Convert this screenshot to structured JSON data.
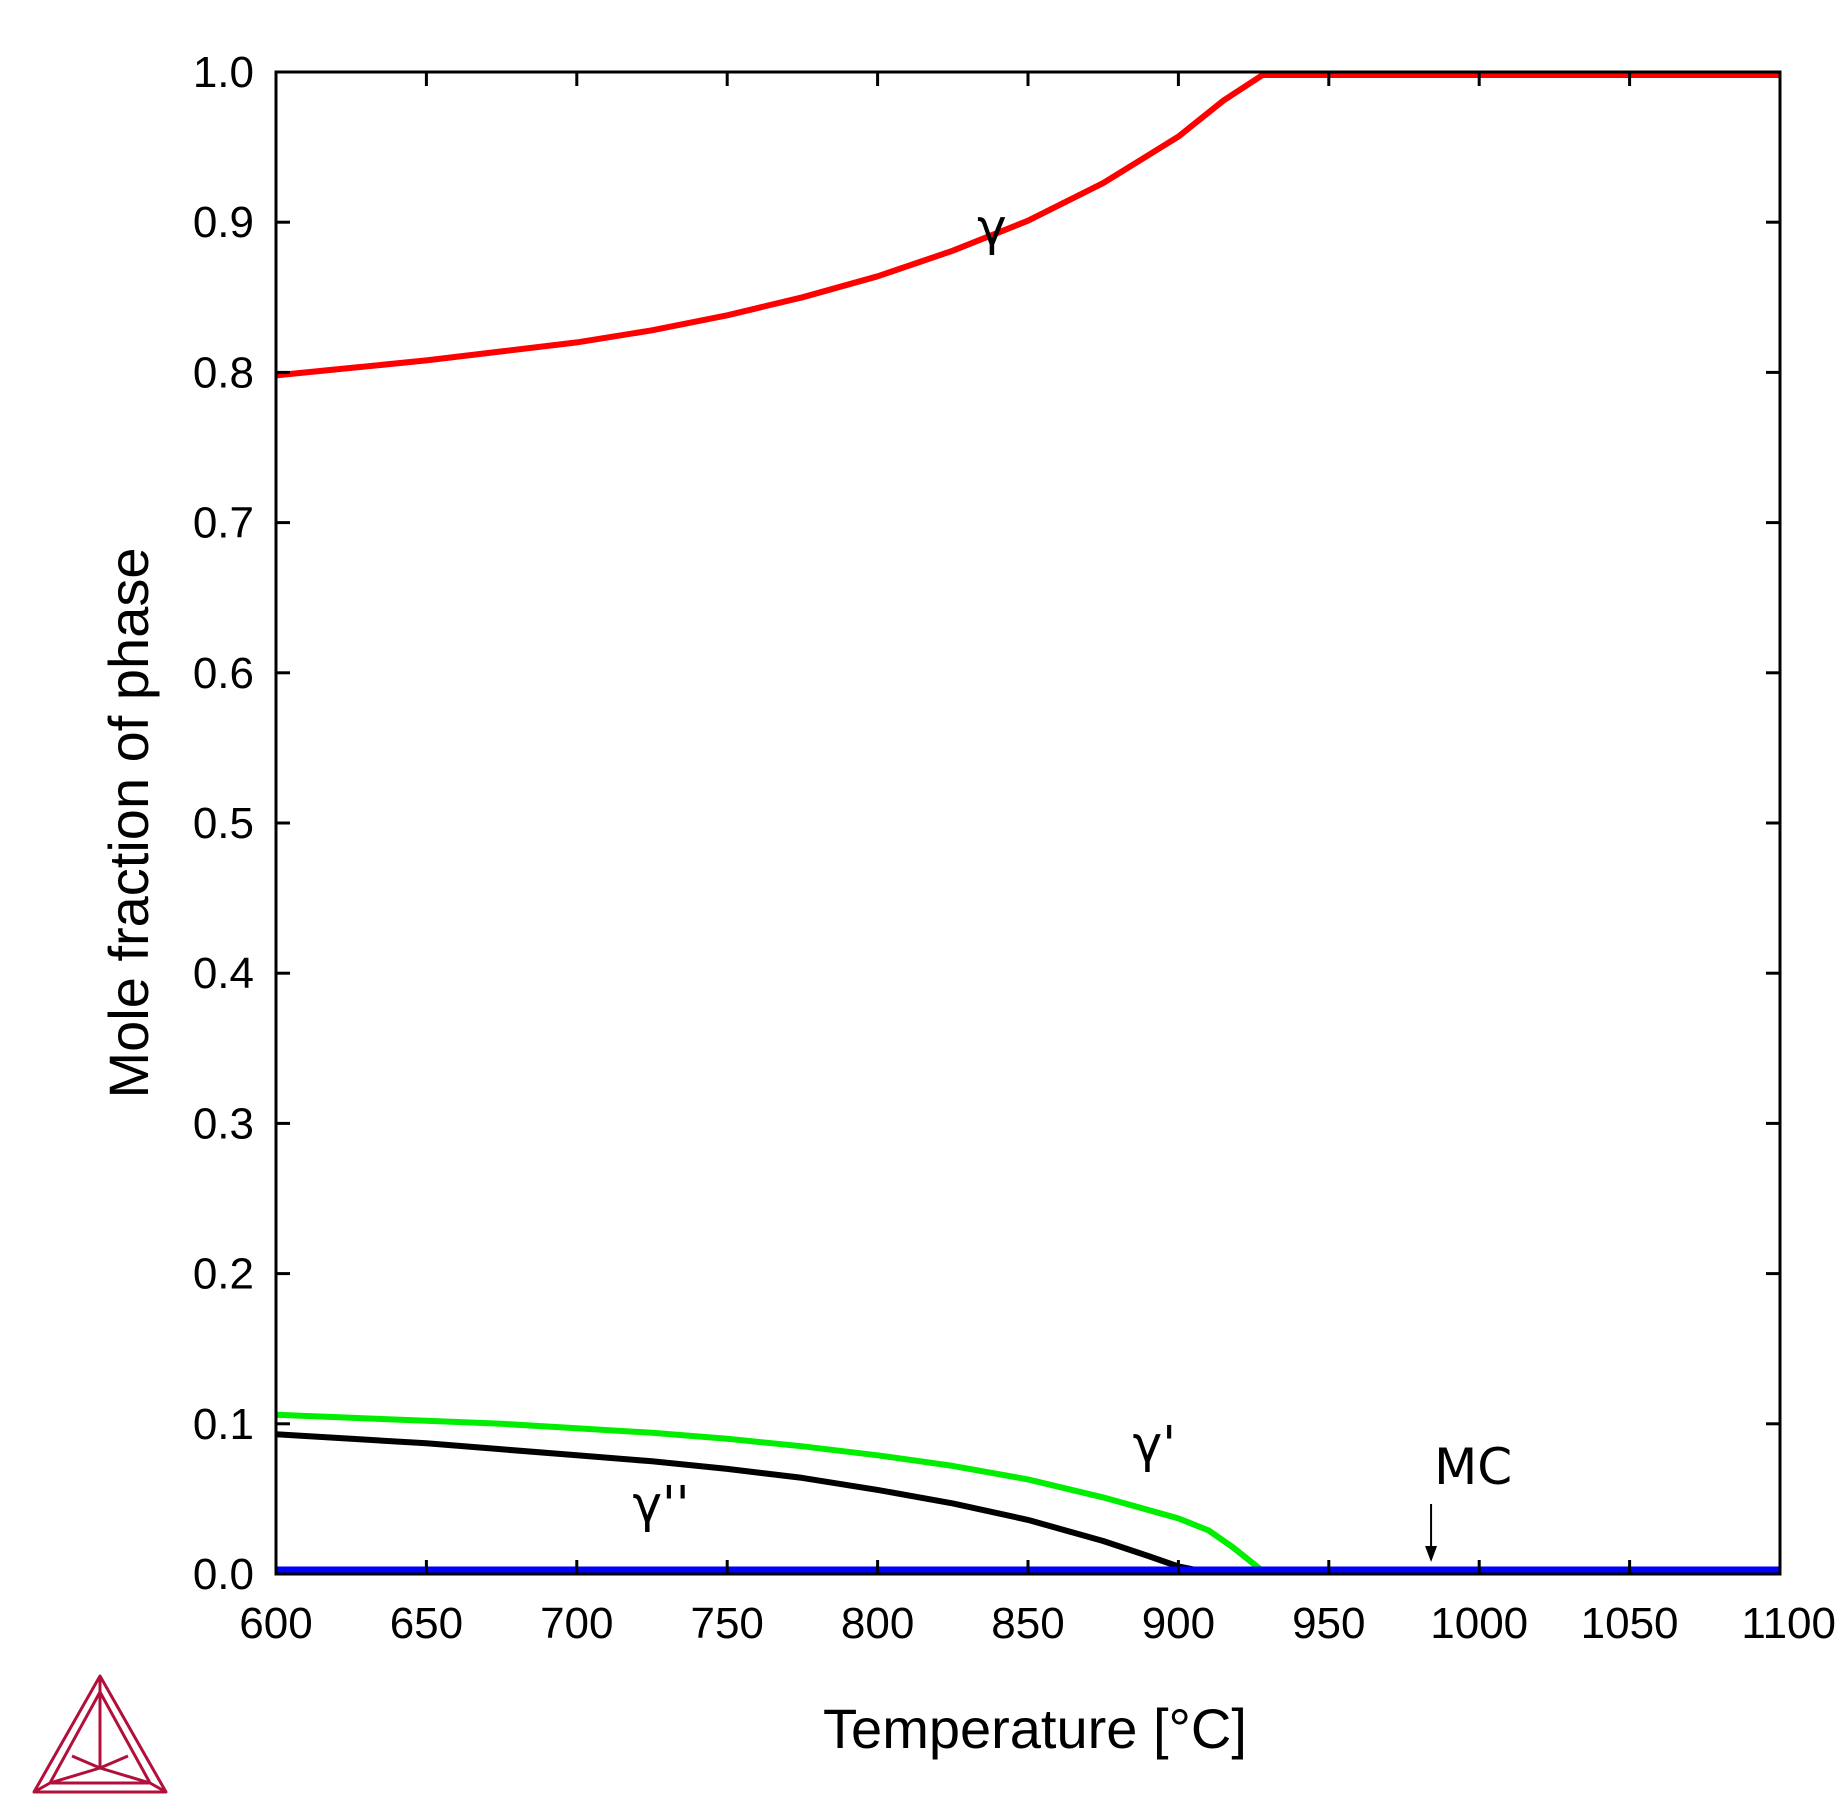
{
  "chart_data": {
    "type": "line",
    "xlabel": "Temperature [°C]",
    "ylabel": "Mole fraction of phase",
    "xlim": [
      600,
      1100
    ],
    "ylim": [
      0.0,
      1.0
    ],
    "xticks": [
      "600",
      "650",
      "700",
      "750",
      "800",
      "850",
      "900",
      "950",
      "1000",
      "1050",
      "1100"
    ],
    "yticks": [
      "0.0",
      "0.1",
      "0.2",
      "0.3",
      "0.4",
      "0.5",
      "0.6",
      "0.7",
      "0.8",
      "0.9",
      "1.0"
    ],
    "grid": false,
    "series": [
      {
        "name": "γ",
        "color": "#ff0000",
        "x": [
          600,
          625,
          650,
          675,
          700,
          725,
          750,
          775,
          800,
          825,
          850,
          875,
          900,
          915,
          928,
          950,
          1000,
          1050,
          1100
        ],
        "y": [
          0.798,
          0.803,
          0.808,
          0.814,
          0.82,
          0.828,
          0.838,
          0.85,
          0.864,
          0.881,
          0.901,
          0.926,
          0.957,
          0.981,
          0.998,
          0.998,
          0.998,
          0.998,
          0.998
        ]
      },
      {
        "name": "γ'",
        "color": "#00ee00",
        "x": [
          600,
          625,
          650,
          675,
          700,
          725,
          750,
          775,
          800,
          825,
          850,
          875,
          900,
          910,
          918,
          928
        ],
        "y": [
          0.106,
          0.104,
          0.102,
          0.1,
          0.097,
          0.094,
          0.09,
          0.085,
          0.079,
          0.072,
          0.063,
          0.051,
          0.037,
          0.029,
          0.018,
          0.002
        ]
      },
      {
        "name": "γ''",
        "color": "#000000",
        "x": [
          600,
          625,
          650,
          675,
          700,
          725,
          750,
          775,
          800,
          825,
          850,
          875,
          890,
          900,
          910
        ],
        "y": [
          0.093,
          0.09,
          0.087,
          0.083,
          0.079,
          0.075,
          0.07,
          0.064,
          0.056,
          0.047,
          0.036,
          0.022,
          0.012,
          0.005,
          0.001
        ]
      },
      {
        "name": "MC",
        "color": "#0000ff",
        "x": [
          600,
          1100
        ],
        "y": [
          0.003,
          0.003
        ]
      }
    ],
    "annotations": [
      {
        "text": "γ",
        "x": 838,
        "y": 0.885
      },
      {
        "text": "γ'",
        "x": 892,
        "y": 0.075
      },
      {
        "text": "γ''",
        "x": 728,
        "y": 0.035
      },
      {
        "text": "MC",
        "x": 998,
        "y": 0.06,
        "arrow_to": [
          984,
          0.008
        ]
      }
    ]
  },
  "logo": {
    "name": "triangle-logo",
    "color": "#b0103a"
  }
}
